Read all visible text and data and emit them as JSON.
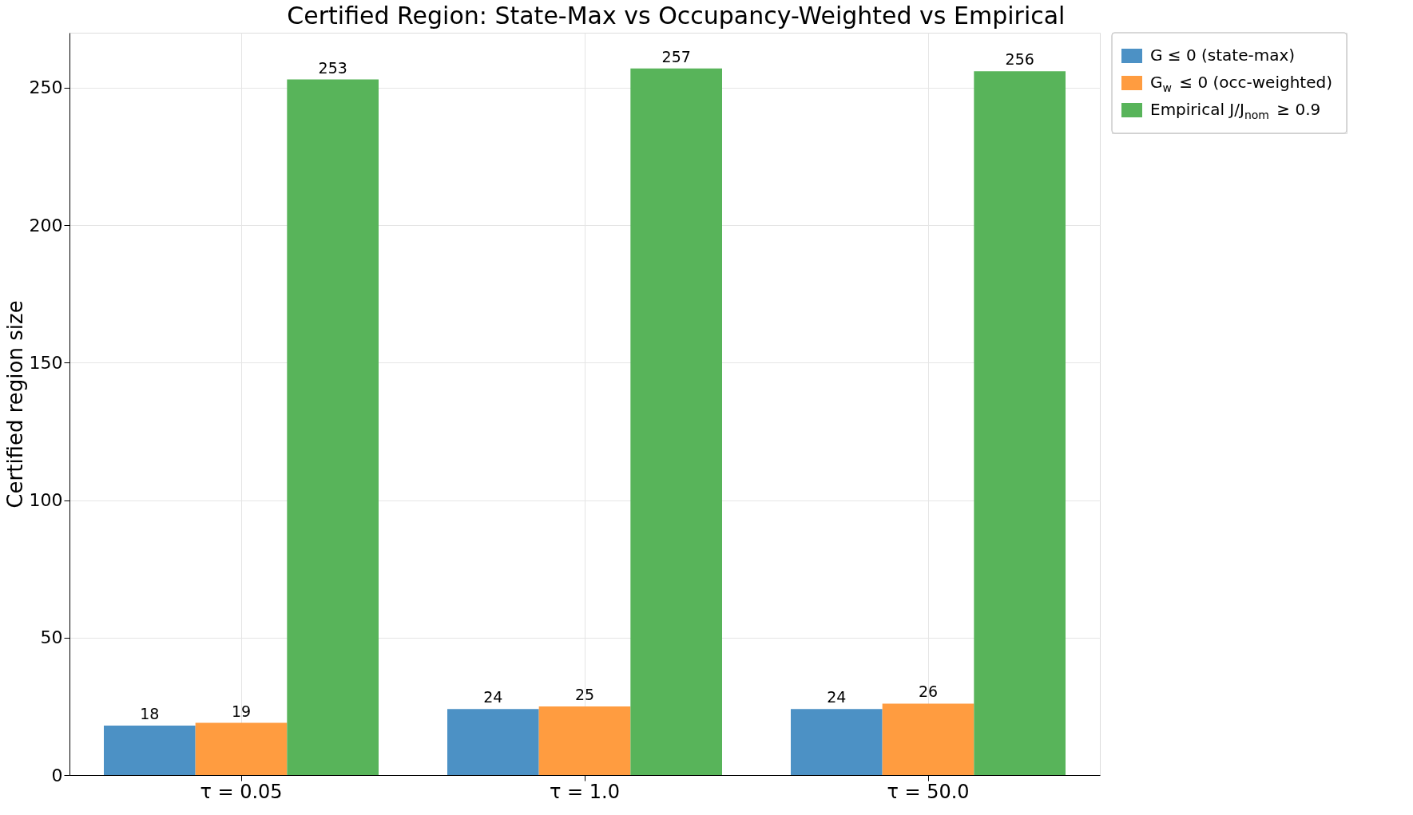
{
  "chart_data": {
    "type": "bar",
    "title": "Certified Region: State-Max vs Occupancy-Weighted vs Empirical",
    "ylabel": "Certified region size",
    "categories": [
      "τ = 0.05",
      "τ = 1.0",
      "τ = 50.0"
    ],
    "series": [
      {
        "name": "G ≤ 0 (state-max)",
        "color": "#4c91c5",
        "values": [
          18,
          24,
          24
        ]
      },
      {
        "name": "G$_{w}$ ≤ 0 (occ-weighted)",
        "color": "#ff9c40",
        "values": [
          19,
          25,
          26
        ]
      },
      {
        "name": "Empirical J/J$_{nom}$ ≥ 0.9",
        "color": "#58b45a",
        "values": [
          253,
          257,
          256
        ]
      }
    ],
    "ylim": [
      0,
      270
    ],
    "yticks": [
      0,
      50,
      100,
      150,
      200,
      250
    ],
    "grid": true,
    "legend": "right",
    "data_labels": true
  }
}
